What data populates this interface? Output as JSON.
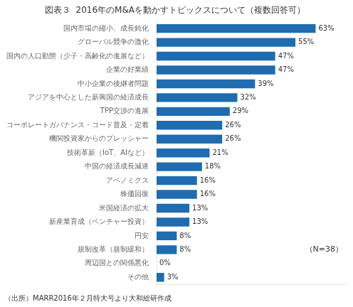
{
  "chart_data": {
    "type": "bar",
    "orientation": "horizontal",
    "title": "図表３  2016年のM&Aを動かすトピックスについて（複数回答可）",
    "annotations": [
      "（N=38）",
      "（出所）MARR2016年２月特大号より大和総研作成"
    ],
    "categories": [
      "国内市場の縮小、成長鈍化",
      "グローバル競争の激化",
      "国内の人口動態（少子・高齢化の進展など）",
      "企業の好業績",
      "中小企業の後継者問題",
      "アジアを中心とした新興国の経済成長",
      "TPP交渉の進展",
      "コーポレートガバナンス・コード普及・定着",
      "機関投資家からのプレッシャー",
      "技術革新（IoT、AIなど）",
      "中国の経済成長減速",
      "アベノミクス",
      "株価回復",
      "米国経済の拡大",
      "新産業育成（ベンチャー投資）",
      "円安",
      "規制改革（規制緩和）",
      "周辺国との関係悪化",
      "その他"
    ],
    "values": [
      63,
      55,
      47,
      47,
      39,
      32,
      29,
      26,
      26,
      21,
      18,
      16,
      16,
      13,
      13,
      8,
      8,
      0,
      3
    ],
    "value_labels": [
      "63%",
      "55%",
      "47%",
      "47%",
      "39%",
      "32%",
      "29%",
      "26%",
      "26%",
      "21%",
      "18%",
      "16%",
      "16%",
      "13%",
      "13%",
      "8%",
      "8%",
      "0%",
      "3%"
    ],
    "color": "#1F6CB0",
    "xlim": [
      0,
      75
    ],
    "grid": false,
    "data_labels": true,
    "tick_labels": "y"
  }
}
